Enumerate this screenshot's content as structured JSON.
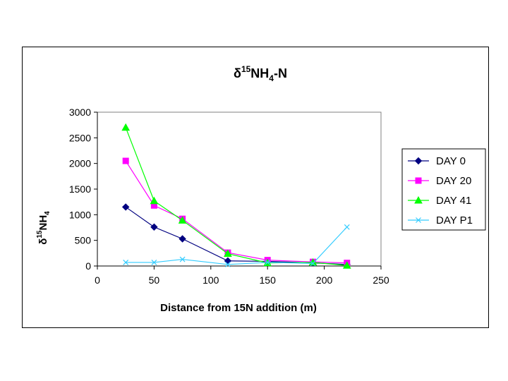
{
  "chart_data": {
    "type": "line",
    "title": {
      "prefix": "δ",
      "sup": "15",
      "main": "NH",
      "sub": "4",
      "suffix": "-N"
    },
    "xlabel": "Distance from 15N addition (m)",
    "ylabel": {
      "prefix": "δ",
      "sup": "15",
      "main": "NH",
      "sub": "4"
    },
    "xlim": [
      0,
      250
    ],
    "ylim": [
      0,
      3000
    ],
    "xticks": [
      0,
      50,
      100,
      150,
      200,
      250
    ],
    "yticks": [
      0,
      500,
      1000,
      1500,
      2000,
      2500,
      3000
    ],
    "grid": false,
    "legend_position": "right",
    "x": [
      25,
      50,
      75,
      115,
      150,
      190,
      220
    ],
    "series": [
      {
        "name": "DAY 0",
        "color": "#000080",
        "marker": "diamond",
        "values": [
          1150,
          760,
          530,
          100,
          90,
          60,
          30
        ]
      },
      {
        "name": "DAY 20",
        "color": "#ff00ff",
        "marker": "square",
        "values": [
          2050,
          1180,
          920,
          260,
          115,
          80,
          60
        ]
      },
      {
        "name": "DAY 41",
        "color": "#00ff00",
        "marker": "triangle",
        "values": [
          2700,
          1270,
          890,
          240,
          60,
          70,
          10
        ]
      },
      {
        "name": "DAY P1",
        "color": "#33ccff",
        "marker": "x",
        "values": [
          70,
          70,
          130,
          30,
          70,
          50,
          760
        ]
      }
    ]
  }
}
